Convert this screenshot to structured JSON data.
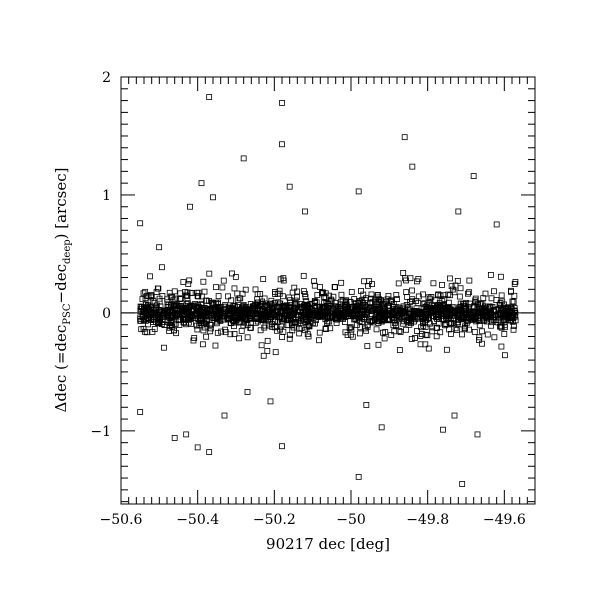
{
  "chart_data": {
    "type": "scatter",
    "title": "",
    "xlabel": "90217 dec [deg]",
    "ylabel": {
      "prefix": "Δdec (=dec",
      "sub1": "PSC",
      "mid": "−dec",
      "sub2": "deep",
      "suffix": ") [arcsec]"
    },
    "xlim": [
      -50.6,
      -49.52
    ],
    "ylim": [
      -1.62,
      2.0
    ],
    "x_ticks": [
      -50.6,
      -50.4,
      -50.2,
      -50.0,
      -49.8,
      -49.6
    ],
    "x_tick_labels": [
      "−50.6",
      "−50.4",
      "−50.2",
      "−50",
      "−49.8",
      "−49.6"
    ],
    "y_ticks": [
      -1,
      0,
      1,
      2
    ],
    "y_tick_labels": [
      "−1",
      "0",
      "1",
      "2"
    ],
    "reference_line_y": 0,
    "marker": "open-square",
    "grid": false,
    "legend": "none",
    "core_band": {
      "x_range": [
        -50.55,
        -49.57
      ],
      "count": 1800,
      "sigma": 0.13,
      "dense_fraction": 0.62,
      "dense_sigma": 0.045
    },
    "outliers": [
      {
        "x": -50.37,
        "y": 1.83
      },
      {
        "x": -50.18,
        "y": 1.78
      },
      {
        "x": -49.86,
        "y": 1.49
      },
      {
        "x": -50.18,
        "y": 1.43
      },
      {
        "x": -50.28,
        "y": 1.31
      },
      {
        "x": -49.84,
        "y": 1.24
      },
      {
        "x": -49.68,
        "y": 1.16
      },
      {
        "x": -50.39,
        "y": 1.1
      },
      {
        "x": -50.16,
        "y": 1.07
      },
      {
        "x": -49.98,
        "y": 1.03
      },
      {
        "x": -50.36,
        "y": 0.98
      },
      {
        "x": -50.42,
        "y": 0.9
      },
      {
        "x": -50.12,
        "y": 0.86
      },
      {
        "x": -49.72,
        "y": 0.86
      },
      {
        "x": -50.55,
        "y": 0.76
      },
      {
        "x": -49.62,
        "y": 0.75
      },
      {
        "x": -50.27,
        "y": -0.67
      },
      {
        "x": -50.21,
        "y": -0.75
      },
      {
        "x": -49.96,
        "y": -0.78
      },
      {
        "x": -50.55,
        "y": -0.84
      },
      {
        "x": -50.33,
        "y": -0.87
      },
      {
        "x": -49.73,
        "y": -0.87
      },
      {
        "x": -49.92,
        "y": -0.97
      },
      {
        "x": -49.76,
        "y": -0.99
      },
      {
        "x": -50.43,
        "y": -1.03
      },
      {
        "x": -49.67,
        "y": -1.03
      },
      {
        "x": -50.46,
        "y": -1.06
      },
      {
        "x": -50.4,
        "y": -1.14
      },
      {
        "x": -50.18,
        "y": -1.13
      },
      {
        "x": -50.37,
        "y": -1.18
      },
      {
        "x": -49.98,
        "y": -1.39
      },
      {
        "x": -49.71,
        "y": -1.45
      }
    ]
  }
}
